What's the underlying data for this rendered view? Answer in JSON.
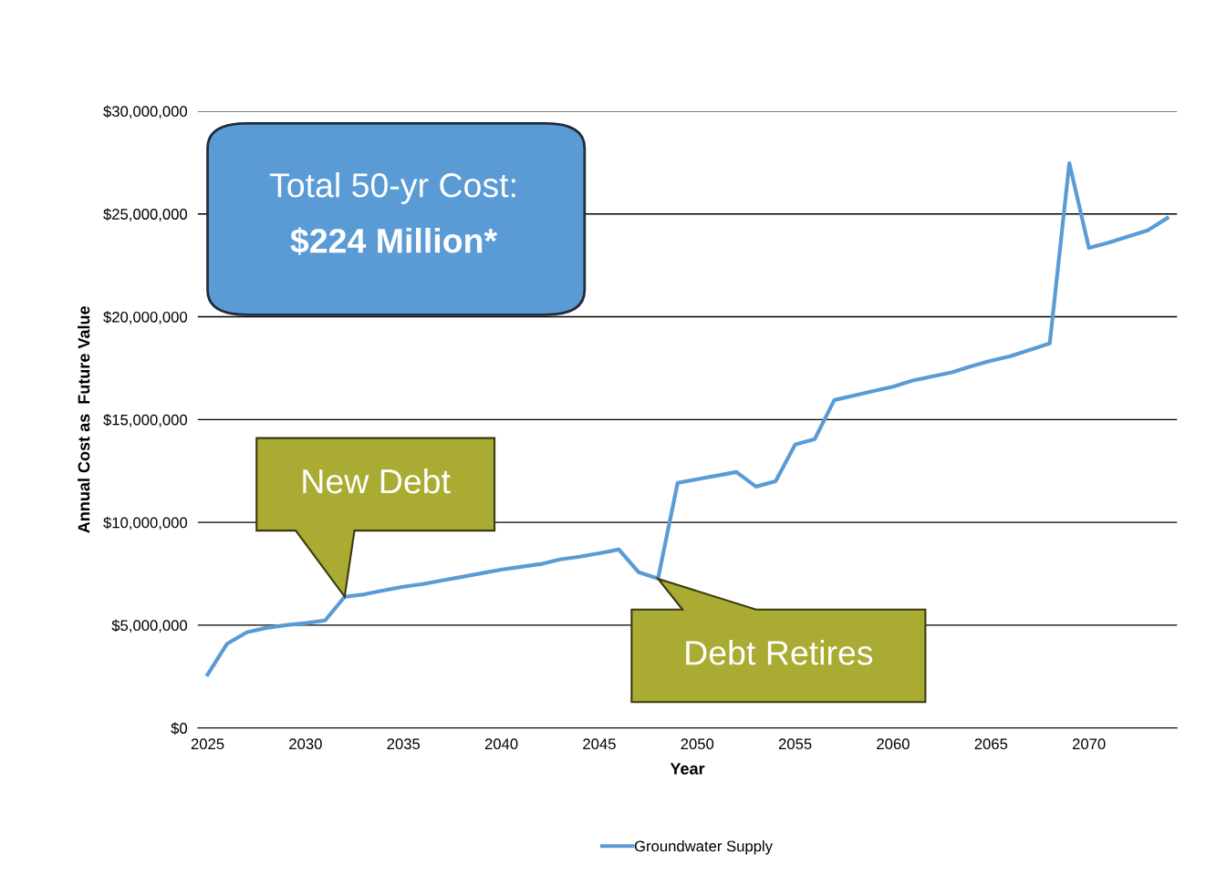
{
  "chart_data": {
    "type": "line",
    "xlabel": "Year",
    "ylabel": "Annual Cost as  Future Value",
    "x": [
      2025,
      2026,
      2027,
      2028,
      2029,
      2030,
      2031,
      2032,
      2033,
      2034,
      2035,
      2036,
      2037,
      2038,
      2039,
      2040,
      2041,
      2042,
      2043,
      2044,
      2045,
      2046,
      2047,
      2048,
      2049,
      2050,
      2051,
      2052,
      2053,
      2054,
      2055,
      2056,
      2057,
      2058,
      2059,
      2060,
      2061,
      2062,
      2063,
      2064,
      2065,
      2066,
      2067,
      2068,
      2069,
      2070,
      2071,
      2072,
      2073,
      2074
    ],
    "series": [
      {
        "name": "Groundwater Supply",
        "color": "#5b9bd5",
        "values": [
          2600000,
          4100000,
          4650000,
          4870000,
          5000000,
          5100000,
          5230000,
          6380000,
          6500000,
          6690000,
          6870000,
          7000000,
          7180000,
          7350000,
          7530000,
          7700000,
          7840000,
          7970000,
          8200000,
          8330000,
          8500000,
          8680000,
          7580000,
          7270000,
          11920000,
          12100000,
          12270000,
          12450000,
          11740000,
          12000000,
          13780000,
          14050000,
          15950000,
          16170000,
          16390000,
          16600000,
          16900000,
          17100000,
          17300000,
          17600000,
          17860000,
          18080000,
          18390000,
          18700000,
          27470000,
          23350000,
          23600000,
          23900000,
          24200000,
          24800000
        ]
      }
    ],
    "xlim": [
      2024.5,
      2074.5
    ],
    "xticks": [
      2025,
      2030,
      2035,
      2040,
      2045,
      2050,
      2055,
      2060,
      2065,
      2070
    ],
    "ylim": [
      0,
      30000000
    ],
    "yticks": [
      {
        "value": 0,
        "label": "$0"
      },
      {
        "value": 5000000,
        "label": "$5,000,000"
      },
      {
        "value": 10000000,
        "label": "$10,000,000"
      },
      {
        "value": 15000000,
        "label": "$15,000,000"
      },
      {
        "value": 20000000,
        "label": "$20,000,000"
      },
      {
        "value": 25000000,
        "label": "$25,000,000"
      },
      {
        "value": 30000000,
        "label": "$30,000,000"
      }
    ],
    "grid": "y",
    "legend": "bottom",
    "marker": "none",
    "line_style": "solid",
    "annotations": [
      "Total 50-yr Cost:\n$224 Million*",
      "New Debt",
      "Debt Retires"
    ]
  }
}
